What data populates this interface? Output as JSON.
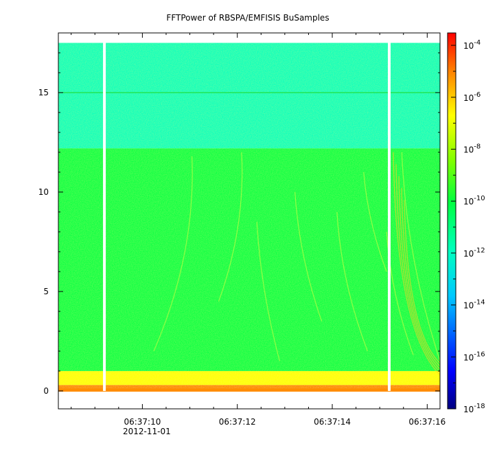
{
  "chart_data": {
    "type": "heatmap",
    "title": "FFTPower of RBSPA/EMFISIS  BuSamples",
    "xlabel": "",
    "ylabel": "",
    "date_label": "2012-11-01",
    "x_ticks": [
      "06:37:10",
      "06:37:12",
      "06:37:14",
      "06:37:16"
    ],
    "xlim": [
      "06:37:08.23",
      "06:37:16.27"
    ],
    "ylim": [
      -0.9,
      18.0
    ],
    "y_ticks": [
      "0",
      "5",
      "10",
      "15"
    ],
    "colorbar": {
      "scale": "log",
      "range": [
        1e-18,
        0.0003
      ],
      "tick_bases": [
        "10",
        "10",
        "10",
        "10",
        "10",
        "10",
        "10",
        "10"
      ],
      "tick_exponents": [
        "-4",
        "-6",
        "-8",
        "-10",
        "-12",
        "-14",
        "-16",
        "-18"
      ],
      "colormap": [
        "#000080",
        "#0000ff",
        "#00c8ff",
        "#00ffc0",
        "#00ff40",
        "#80ff00",
        "#ffff00",
        "#ff8000",
        "#ff0000"
      ]
    },
    "data_gaps_at": [
      "06:37:09.20",
      "06:37:15.20"
    ],
    "frequency_bands": [
      {
        "from": 0.0,
        "to": 0.3,
        "level": "1e-6"
      },
      {
        "from": 0.3,
        "to": 1.0,
        "level": "1e-8"
      },
      {
        "from": 1.0,
        "to": 12.2,
        "level": "1e-10"
      },
      {
        "from": 12.2,
        "to": 17.5,
        "level": "1e-12"
      }
    ],
    "grid": false
  }
}
